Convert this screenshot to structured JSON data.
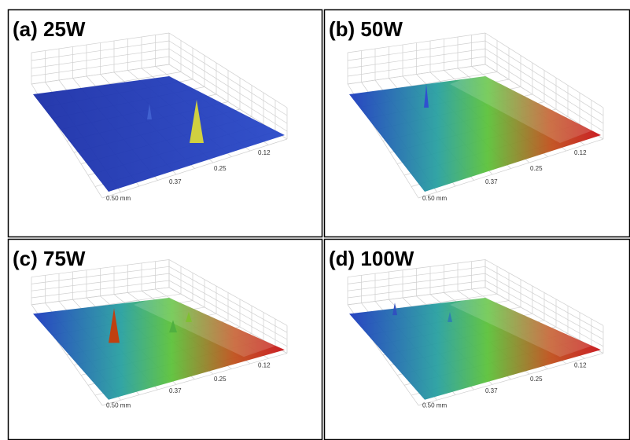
{
  "panels": [
    {
      "label": "(a) 25W",
      "ticks": [
        "0.12",
        "0.25",
        "0.37",
        "0.50 mm"
      ]
    },
    {
      "label": "(b) 50W",
      "ticks": [
        "0.12",
        "0.25",
        "0.37",
        "0.50 mm"
      ]
    },
    {
      "label": "(c) 75W",
      "ticks": [
        "0.12",
        "0.25",
        "0.37",
        "0.50 mm"
      ]
    },
    {
      "label": "(d) 100W",
      "ticks": [
        "0.12",
        "0.25",
        "0.37",
        "0.50 mm"
      ]
    }
  ]
}
